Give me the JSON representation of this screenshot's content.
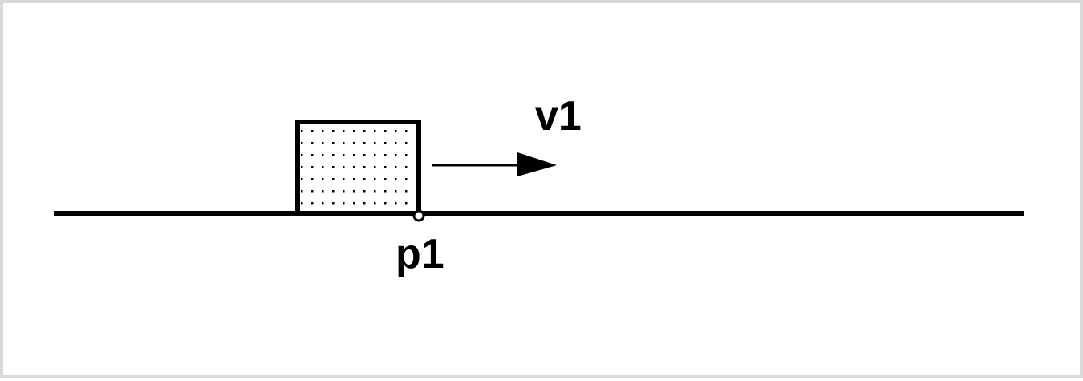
{
  "diagram": {
    "labels": {
      "velocity": "v1",
      "point": "p1"
    },
    "colors": {
      "ink": "#000000",
      "frame": "#d9d9d9",
      "background": "#ffffff"
    },
    "block_fill": "dotted"
  }
}
